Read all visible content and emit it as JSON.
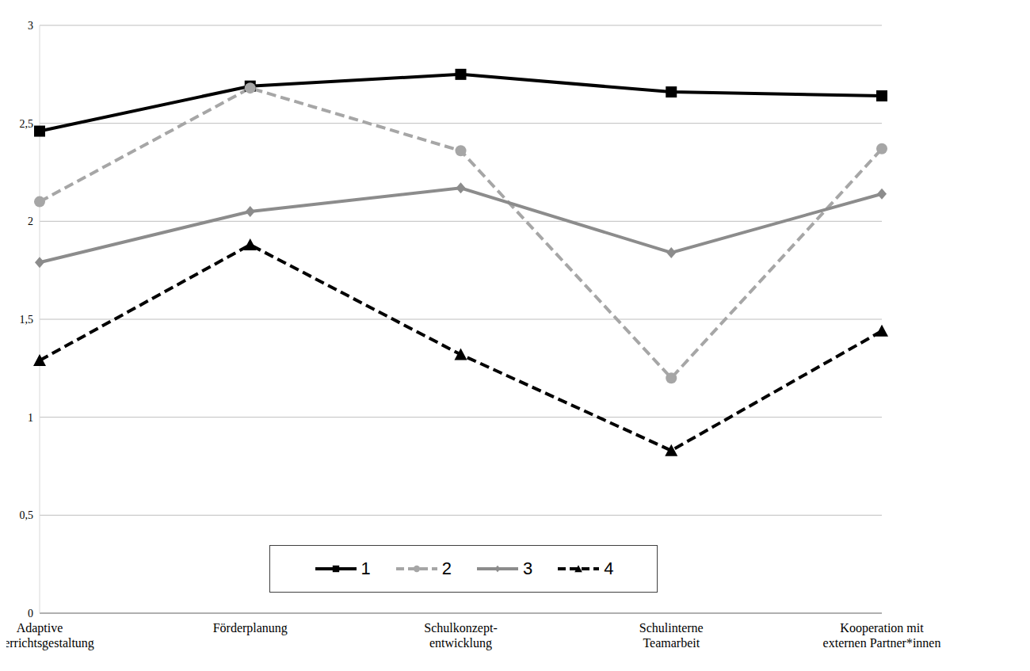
{
  "chart_data": {
    "type": "line",
    "categories": [
      "Adaptive Unterrichtsgestaltung",
      "Förderplanung",
      "Schulkonzept-entwicklung",
      "Schulinterne Teamarbeit",
      "Kooperation mit externen Partner*innen"
    ],
    "series": [
      {
        "name": "1",
        "color": "#000000",
        "marker": "square",
        "line_style": "solid",
        "values": [
          2.46,
          2.69,
          2.75,
          2.66,
          2.64
        ]
      },
      {
        "name": "2",
        "color": "#a6a6a6",
        "marker": "circle",
        "line_style": "dashed",
        "values": [
          2.1,
          2.68,
          2.36,
          1.2,
          2.37
        ]
      },
      {
        "name": "3",
        "color": "#8c8c8c",
        "marker": "diamond",
        "line_style": "solid",
        "values": [
          1.79,
          2.05,
          2.17,
          1.84,
          2.14
        ]
      },
      {
        "name": "4",
        "color": "#000000",
        "marker": "triangle",
        "line_style": "dashed",
        "values": [
          1.29,
          1.88,
          1.32,
          0.83,
          1.44
        ]
      }
    ],
    "ylim": [
      0,
      3
    ],
    "yticks": [
      0,
      {
        "value": 0.5,
        "label": "0,5"
      },
      1,
      {
        "value": 1.5,
        "label": "1,5"
      },
      2,
      {
        "value": 2.5,
        "label": "2,5"
      },
      3
    ],
    "grid": true,
    "legend": "bottom"
  }
}
